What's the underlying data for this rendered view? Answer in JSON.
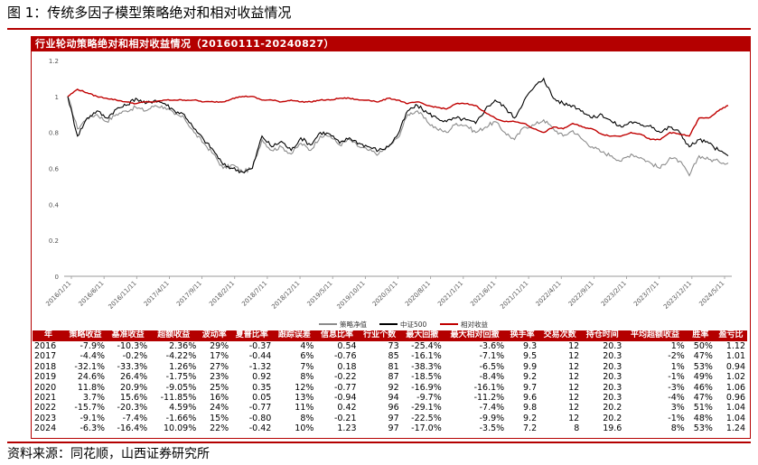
{
  "figure": {
    "title": "图 1：传统多因子模型策略绝对和相对收益情况",
    "source": "资料来源：同花顺，山西证券研究所"
  },
  "chart_data": {
    "type": "line",
    "title": "行业轮动策略绝对和相对收益情况（20160111-20240827）",
    "ylim": [
      0,
      1.2
    ],
    "yticks": [
      "0",
      "0.2",
      "0.4",
      "0.6",
      "0.8",
      "1",
      "1.2"
    ],
    "xticks": [
      "2016/1/11",
      "2016/6/11",
      "2016/11/11",
      "2017/4/11",
      "2017/9/11",
      "2018/2/11",
      "2018/7/11",
      "2018/12/11",
      "2019/5/11",
      "2019/10/11",
      "2020/3/11",
      "2020/8/11",
      "2021/1/11",
      "2021/6/11",
      "2021/11/11",
      "2022/4/11",
      "2022/9/11",
      "2023/2/11",
      "2023/7/11",
      "2023/12/11",
      "2024/5/11"
    ],
    "legend_position": "bottom",
    "grid": false,
    "series": [
      {
        "name": "策略净值",
        "color": "#8c8c8c",
        "values": [
          1.0,
          0.82,
          0.88,
          0.9,
          0.86,
          0.9,
          0.92,
          0.94,
          0.92,
          0.95,
          0.94,
          0.9,
          0.88,
          0.8,
          0.74,
          0.68,
          0.6,
          0.62,
          0.58,
          0.6,
          0.76,
          0.7,
          0.72,
          0.68,
          0.74,
          0.7,
          0.78,
          0.78,
          0.73,
          0.76,
          0.72,
          0.7,
          0.68,
          0.72,
          0.77,
          0.9,
          0.92,
          0.86,
          0.82,
          0.8,
          0.85,
          0.84,
          0.8,
          0.83,
          0.86,
          0.8,
          0.76,
          0.83,
          0.84,
          0.87,
          0.82,
          0.78,
          0.81,
          0.76,
          0.72,
          0.69,
          0.67,
          0.64,
          0.68,
          0.66,
          0.63,
          0.6,
          0.66,
          0.64,
          0.56,
          0.67,
          0.65,
          0.64,
          0.63
        ]
      },
      {
        "name": "中证500",
        "color": "#000000",
        "values": [
          1.0,
          0.78,
          0.88,
          0.92,
          0.88,
          0.93,
          0.95,
          0.99,
          0.96,
          0.98,
          0.96,
          0.92,
          0.9,
          0.82,
          0.76,
          0.7,
          0.62,
          0.6,
          0.58,
          0.6,
          0.78,
          0.72,
          0.75,
          0.7,
          0.77,
          0.73,
          0.8,
          0.79,
          0.74,
          0.77,
          0.74,
          0.72,
          0.7,
          0.72,
          0.79,
          0.92,
          0.95,
          0.91,
          0.88,
          0.86,
          0.88,
          0.87,
          0.85,
          0.93,
          0.98,
          0.94,
          0.88,
          0.98,
          1.05,
          1.1,
          0.99,
          0.96,
          0.95,
          0.92,
          0.88,
          0.9,
          0.86,
          0.83,
          0.86,
          0.84,
          0.84,
          0.8,
          0.83,
          0.8,
          0.72,
          0.76,
          0.74,
          0.7,
          0.67
        ]
      },
      {
        "name": "相对收益",
        "color": "#c00000",
        "values": [
          1.0,
          1.04,
          1.02,
          1.0,
          0.99,
          0.98,
          0.97,
          0.96,
          0.97,
          0.97,
          0.98,
          0.98,
          0.98,
          0.98,
          0.97,
          0.97,
          0.97,
          0.99,
          1.0,
          1.0,
          0.98,
          0.98,
          0.97,
          0.98,
          0.97,
          0.97,
          0.98,
          0.98,
          0.99,
          0.99,
          0.98,
          0.98,
          0.97,
          0.99,
          0.98,
          0.96,
          0.97,
          0.95,
          0.94,
          0.93,
          0.96,
          0.96,
          0.95,
          0.91,
          0.88,
          0.86,
          0.86,
          0.85,
          0.82,
          0.8,
          0.83,
          0.82,
          0.85,
          0.83,
          0.82,
          0.79,
          0.78,
          0.78,
          0.8,
          0.79,
          0.76,
          0.76,
          0.8,
          0.79,
          0.78,
          0.88,
          0.88,
          0.92,
          0.95
        ]
      }
    ]
  },
  "table": {
    "headers": [
      "年",
      "策略收益",
      "基准收益",
      "超额收益",
      "波动率",
      "夏普比率",
      "跟踪误差",
      "信息比率",
      "行业个数",
      "最大回撤",
      "最大相对回撤",
      "换手率",
      "交易次数",
      "持仓时间",
      "平均超额收益",
      "胜率",
      "盈亏比"
    ],
    "rows": [
      [
        "2016",
        "-7.9%",
        "-10.3%",
        "2.36%",
        "29%",
        "-0.37",
        "4%",
        "0.54",
        "73",
        "-25.4%",
        "-3.6%",
        "9.3",
        "12",
        "20.3",
        "1%",
        "50%",
        "1.12"
      ],
      [
        "2017",
        "-4.4%",
        "-0.2%",
        "-4.22%",
        "17%",
        "-0.44",
        "6%",
        "-0.76",
        "85",
        "-16.1%",
        "-7.1%",
        "9.5",
        "12",
        "20.3",
        "-2%",
        "47%",
        "1.01"
      ],
      [
        "2018",
        "-32.1%",
        "-33.3%",
        "1.26%",
        "27%",
        "-1.32",
        "7%",
        "0.18",
        "81",
        "-38.3%",
        "-6.5%",
        "9.9",
        "12",
        "20.3",
        "1%",
        "53%",
        "0.94"
      ],
      [
        "2019",
        "24.6%",
        "26.4%",
        "-1.75%",
        "23%",
        "0.92",
        "8%",
        "-0.22",
        "87",
        "-18.5%",
        "-8.4%",
        "9.2",
        "12",
        "20.3",
        "-1%",
        "49%",
        "1.02"
      ],
      [
        "2020",
        "11.8%",
        "20.9%",
        "-9.05%",
        "25%",
        "0.35",
        "12%",
        "-0.77",
        "92",
        "-16.9%",
        "-16.1%",
        "9.7",
        "12",
        "20.3",
        "-3%",
        "46%",
        "1.06"
      ],
      [
        "2021",
        "3.7%",
        "15.6%",
        "-11.85%",
        "16%",
        "0.05",
        "13%",
        "-0.94",
        "94",
        "-9.7%",
        "-11.2%",
        "9.6",
        "12",
        "20.3",
        "-4%",
        "47%",
        "0.96"
      ],
      [
        "2022",
        "-15.7%",
        "-20.3%",
        "4.59%",
        "24%",
        "-0.77",
        "11%",
        "0.42",
        "96",
        "-29.1%",
        "-7.4%",
        "9.8",
        "12",
        "20.2",
        "3%",
        "51%",
        "1.04"
      ],
      [
        "2023",
        "-9.1%",
        "-7.4%",
        "-1.66%",
        "15%",
        "-0.80",
        "8%",
        "-0.21",
        "97",
        "-22.5%",
        "-9.9%",
        "9.2",
        "12",
        "20.2",
        "-1%",
        "48%",
        "1.04"
      ],
      [
        "2024",
        "-6.3%",
        "-16.4%",
        "10.09%",
        "22%",
        "-0.42",
        "10%",
        "1.23",
        "97",
        "-17.0%",
        "-3.5%",
        "7.2",
        "8",
        "19.6",
        "8%",
        "53%",
        "1.24"
      ]
    ]
  }
}
